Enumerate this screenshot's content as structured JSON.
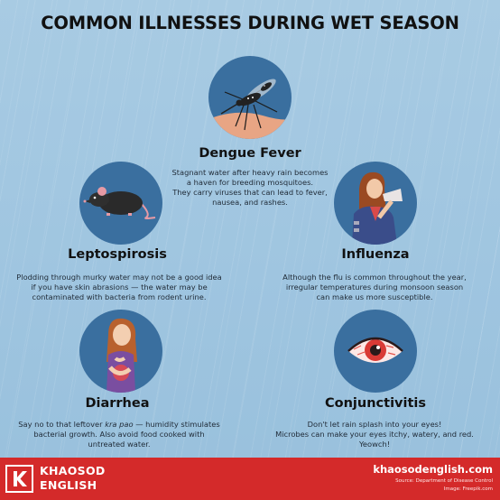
{
  "title": "COMMON ILLNESSES DURING WET SEASON",
  "illnesses": [
    {
      "name": "Dengue Fever",
      "icon": "mosquito-icon",
      "lines": [
        "Stagnant water after heavy rain becomes",
        "a haven for breeding mosquitoes.",
        "They carry viruses that can lead to fever,",
        "nausea, and rashes."
      ]
    },
    {
      "name": "Leptospirosis",
      "icon": "rat-icon",
      "lines": [
        "Plodding through murky water may not be a good idea",
        "if you have skin abrasions — the water may be",
        "contaminated with bacteria from rodent urine."
      ]
    },
    {
      "name": "Influenza",
      "icon": "sick-woman-blowing-nose-icon",
      "lines": [
        "Although the flu is common throughout the year,",
        "irregular temperatures during monsoon season",
        "can make us more susceptible."
      ]
    },
    {
      "name": "Diarrhea",
      "icon": "stomach-ache-woman-icon",
      "lines_rich": [
        {
          "pre": "Say no to that leftover ",
          "em": "kra pao",
          "post": " — humidity stimulates"
        },
        {
          "pre": "bacterial growth. Also avoid food cooked with",
          "em": "",
          "post": ""
        },
        {
          "pre": "untreated water.",
          "em": "",
          "post": ""
        }
      ]
    },
    {
      "name": "Conjunctivitis",
      "icon": "red-eye-icon",
      "lines": [
        "Don't let rain splash into your eyes!",
        "Microbes can make your eyes itchy, watery, and red.",
        "Yeowch!"
      ]
    }
  ],
  "footer": {
    "logo_letter": "K",
    "brand_line1": "KHAOSOD",
    "brand_line2": "ENGLISH",
    "site": "khaosodenglish.com",
    "source": "Source: Department of Disease Control",
    "image_credit": "Image: Freepik.com"
  },
  "colors": {
    "background": "#a8cbe3",
    "circle": "#3a6f9f",
    "footer": "#d42a2a"
  }
}
